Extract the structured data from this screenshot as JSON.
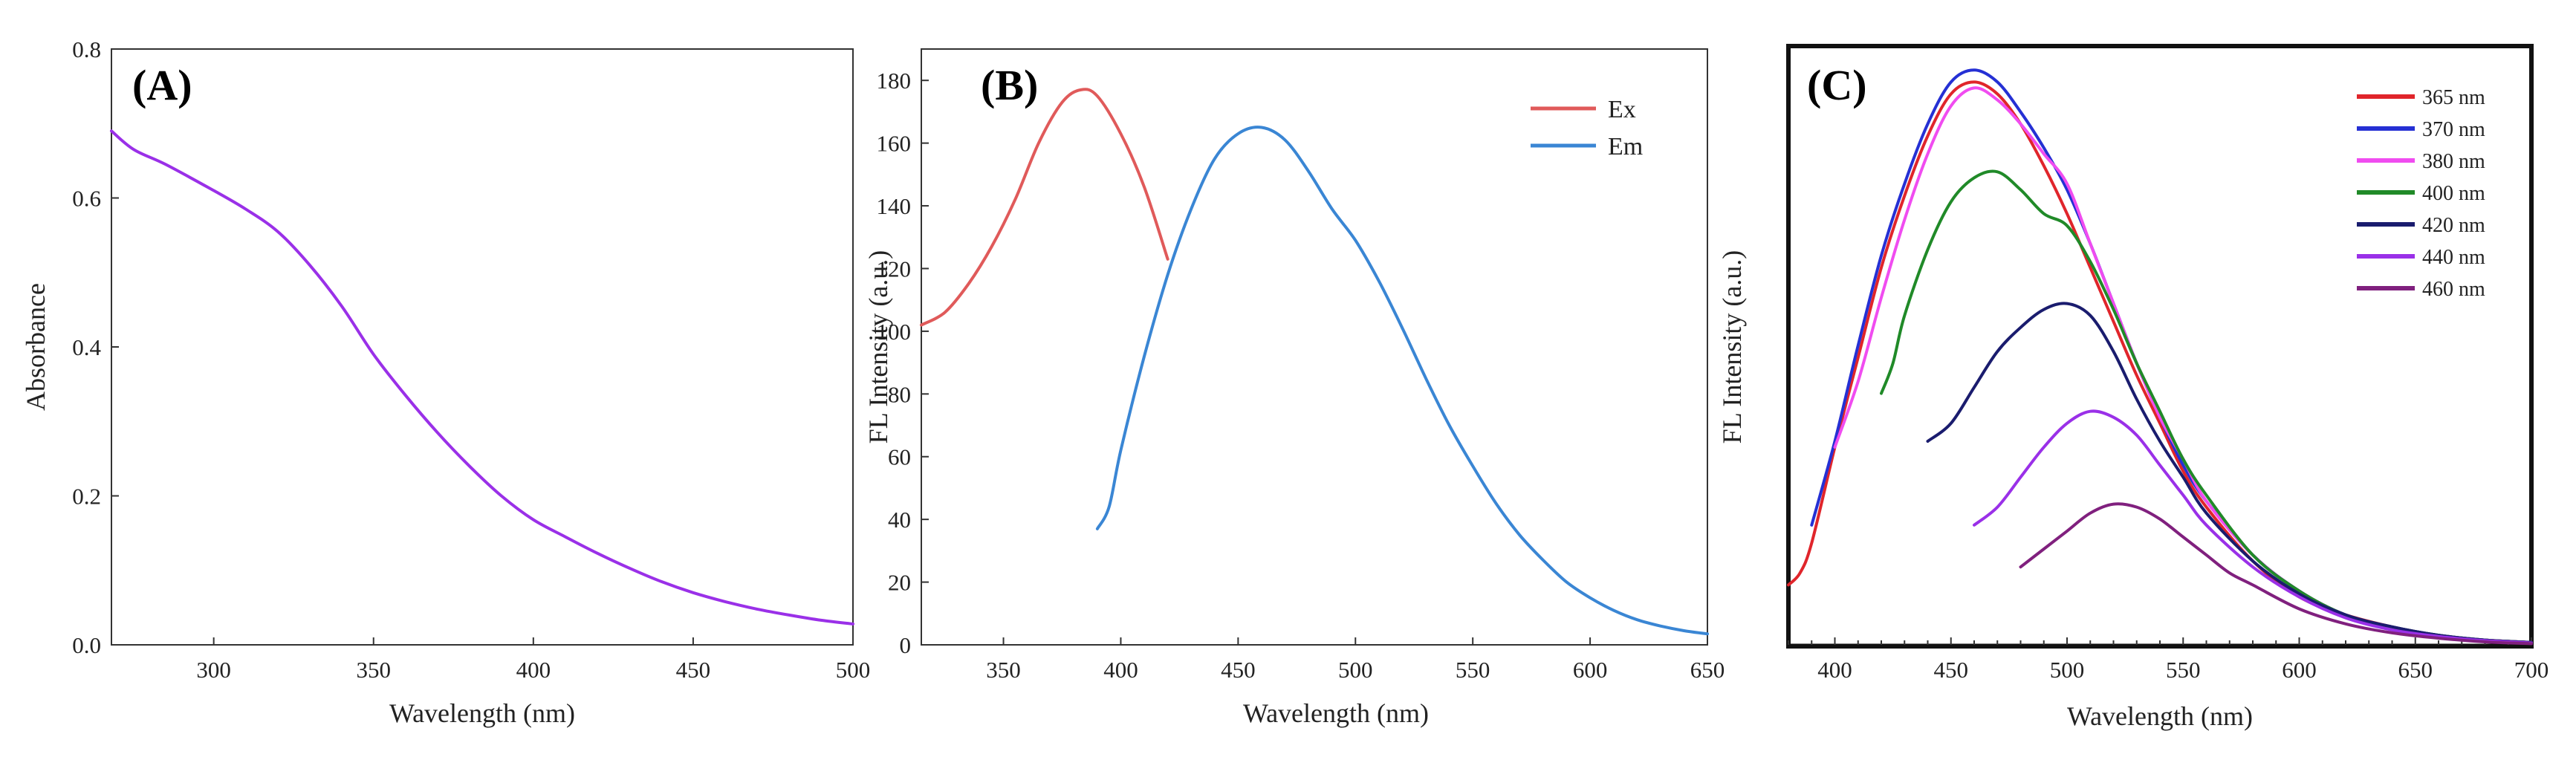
{
  "chart_data": [
    {
      "panel": "(A)",
      "type": "line",
      "xlabel": "Wavelength (nm)",
      "ylabel": "Absorbance",
      "xlim": [
        268,
        500
      ],
      "ylim": [
        0.0,
        0.8
      ],
      "xticks": [
        300,
        350,
        400,
        450,
        500
      ],
      "yticks": [
        0.0,
        0.2,
        0.4,
        0.6,
        0.8
      ],
      "xtick_labels": [
        "300",
        "350",
        "400",
        "450",
        "500"
      ],
      "ytick_labels": [
        "0.0",
        "0.2",
        "0.4",
        "0.6",
        "0.8"
      ],
      "series": [
        {
          "name": "Absorbance",
          "color": "#9a30e8",
          "x": [
            268,
            275,
            285,
            300,
            310,
            320,
            330,
            340,
            350,
            360,
            370,
            380,
            390,
            400,
            410,
            420,
            430,
            440,
            450,
            460,
            470,
            480,
            490,
            500
          ],
          "y": [
            0.69,
            0.665,
            0.645,
            0.61,
            0.585,
            0.555,
            0.51,
            0.455,
            0.39,
            0.335,
            0.285,
            0.24,
            0.2,
            0.168,
            0.145,
            0.123,
            0.103,
            0.085,
            0.07,
            0.058,
            0.048,
            0.04,
            0.033,
            0.028
          ]
        }
      ]
    },
    {
      "panel": "(B)",
      "type": "line",
      "xlabel": "Wavelength (nm)",
      "ylabel": "FL Intensity (a.u.)",
      "xlim": [
        315,
        650
      ],
      "ylim": [
        0,
        190
      ],
      "xticks": [
        350,
        400,
        450,
        500,
        550,
        600,
        650
      ],
      "yticks": [
        0,
        20,
        40,
        60,
        80,
        100,
        120,
        140,
        160,
        180
      ],
      "xtick_labels": [
        "350",
        "400",
        "450",
        "500",
        "550",
        "600",
        "650"
      ],
      "ytick_labels": [
        "0",
        "20",
        "40",
        "60",
        "80",
        "100",
        "120",
        "140",
        "160",
        "180"
      ],
      "legend_position": "top-right",
      "series": [
        {
          "name": "Ex",
          "color": "#e05a5a",
          "x": [
            315,
            325,
            335,
            345,
            355,
            365,
            375,
            383,
            390,
            400,
            410,
            420
          ],
          "y": [
            102,
            106,
            115,
            127,
            142,
            160,
            173,
            177,
            175,
            163,
            146,
            123
          ]
        },
        {
          "name": "Em",
          "color": "#3a86d4",
          "x": [
            390,
            395,
            400,
            410,
            420,
            430,
            440,
            450,
            460,
            470,
            480,
            490,
            500,
            510,
            520,
            530,
            540,
            550,
            560,
            570,
            580,
            590,
            600,
            610,
            620,
            630,
            640,
            650
          ],
          "y": [
            37,
            44,
            62,
            92,
            118,
            139,
            155,
            163,
            165,
            161,
            151,
            139,
            129,
            116,
            101,
            85,
            70,
            57,
            45,
            35,
            27,
            20,
            15,
            11,
            8,
            6,
            4.5,
            3.5
          ]
        }
      ]
    },
    {
      "panel": "(C)",
      "type": "line",
      "xlabel": "Wavelength (nm)",
      "ylabel": "FL Intensity (a.u.)",
      "xlim": [
        380,
        700
      ],
      "ylim": [
        0,
        1.0
      ],
      "xticks": [
        400,
        450,
        500,
        550,
        600,
        650,
        700
      ],
      "xtick_labels": [
        "400",
        "450",
        "500",
        "550",
        "600",
        "650",
        "700"
      ],
      "legend_position": "top-right",
      "series": [
        {
          "name": "365 nm",
          "color": "#e0252b",
          "x": [
            380,
            385,
            390,
            400,
            410,
            420,
            430,
            440,
            450,
            460,
            470,
            480,
            490,
            500,
            510,
            520,
            530,
            540,
            550,
            560,
            580,
            600,
            620,
            640,
            660,
            680,
            700
          ],
          "y": [
            0.1,
            0.12,
            0.17,
            0.33,
            0.48,
            0.63,
            0.75,
            0.85,
            0.92,
            0.94,
            0.92,
            0.87,
            0.8,
            0.72,
            0.63,
            0.54,
            0.45,
            0.37,
            0.29,
            0.23,
            0.14,
            0.08,
            0.05,
            0.03,
            0.015,
            0.008,
            0.004
          ]
        },
        {
          "name": "370 nm",
          "color": "#2530d4",
          "x": [
            390,
            400,
            410,
            420,
            430,
            440,
            450,
            460,
            470,
            480,
            490,
            500,
            510,
            520,
            530,
            540,
            550,
            560,
            580,
            600,
            620,
            640,
            660,
            680,
            700
          ],
          "y": [
            0.2,
            0.34,
            0.5,
            0.65,
            0.77,
            0.87,
            0.94,
            0.96,
            0.94,
            0.89,
            0.83,
            0.76,
            0.67,
            0.57,
            0.47,
            0.38,
            0.3,
            0.24,
            0.15,
            0.09,
            0.05,
            0.03,
            0.016,
            0.008,
            0.004
          ]
        },
        {
          "name": "380 nm",
          "color": "#f04cf0",
          "x": [
            400,
            410,
            420,
            430,
            440,
            450,
            460,
            470,
            480,
            490,
            500,
            510,
            520,
            530,
            540,
            550,
            560,
            580,
            600,
            620,
            640,
            660,
            680,
            700
          ],
          "y": [
            0.33,
            0.44,
            0.58,
            0.71,
            0.82,
            0.9,
            0.93,
            0.91,
            0.87,
            0.82,
            0.77,
            0.67,
            0.57,
            0.47,
            0.38,
            0.31,
            0.24,
            0.15,
            0.09,
            0.05,
            0.03,
            0.016,
            0.008,
            0.004
          ]
        },
        {
          "name": "400 nm",
          "color": "#208a28",
          "x": [
            420,
            425,
            430,
            440,
            450,
            460,
            470,
            480,
            490,
            500,
            510,
            520,
            530,
            540,
            550,
            560,
            580,
            600,
            620,
            640,
            660,
            680,
            700
          ],
          "y": [
            0.42,
            0.47,
            0.55,
            0.66,
            0.74,
            0.78,
            0.79,
            0.76,
            0.72,
            0.7,
            0.64,
            0.56,
            0.47,
            0.39,
            0.31,
            0.25,
            0.15,
            0.09,
            0.05,
            0.03,
            0.016,
            0.008,
            0.004
          ]
        },
        {
          "name": "420 nm",
          "color": "#1a1c6e",
          "x": [
            440,
            450,
            460,
            470,
            480,
            490,
            500,
            510,
            520,
            530,
            540,
            550,
            560,
            580,
            600,
            620,
            640,
            660,
            680,
            700
          ],
          "y": [
            0.34,
            0.37,
            0.43,
            0.49,
            0.53,
            0.56,
            0.57,
            0.55,
            0.49,
            0.41,
            0.34,
            0.28,
            0.22,
            0.14,
            0.085,
            0.05,
            0.03,
            0.016,
            0.008,
            0.004
          ]
        },
        {
          "name": "440 nm",
          "color": "#9a30e8",
          "x": [
            460,
            470,
            480,
            490,
            500,
            510,
            520,
            530,
            540,
            550,
            560,
            580,
            600,
            620,
            640,
            660,
            680,
            700
          ],
          "y": [
            0.2,
            0.23,
            0.28,
            0.33,
            0.37,
            0.39,
            0.38,
            0.35,
            0.3,
            0.25,
            0.2,
            0.13,
            0.08,
            0.045,
            0.025,
            0.014,
            0.007,
            0.003
          ]
        },
        {
          "name": "460 nm",
          "color": "#80207e",
          "x": [
            480,
            490,
            500,
            510,
            520,
            530,
            540,
            550,
            560,
            570,
            580,
            600,
            620,
            640,
            660,
            680,
            700
          ],
          "y": [
            0.13,
            0.16,
            0.19,
            0.22,
            0.235,
            0.23,
            0.21,
            0.18,
            0.15,
            0.12,
            0.1,
            0.06,
            0.035,
            0.02,
            0.011,
            0.005,
            0.002
          ]
        }
      ]
    }
  ]
}
